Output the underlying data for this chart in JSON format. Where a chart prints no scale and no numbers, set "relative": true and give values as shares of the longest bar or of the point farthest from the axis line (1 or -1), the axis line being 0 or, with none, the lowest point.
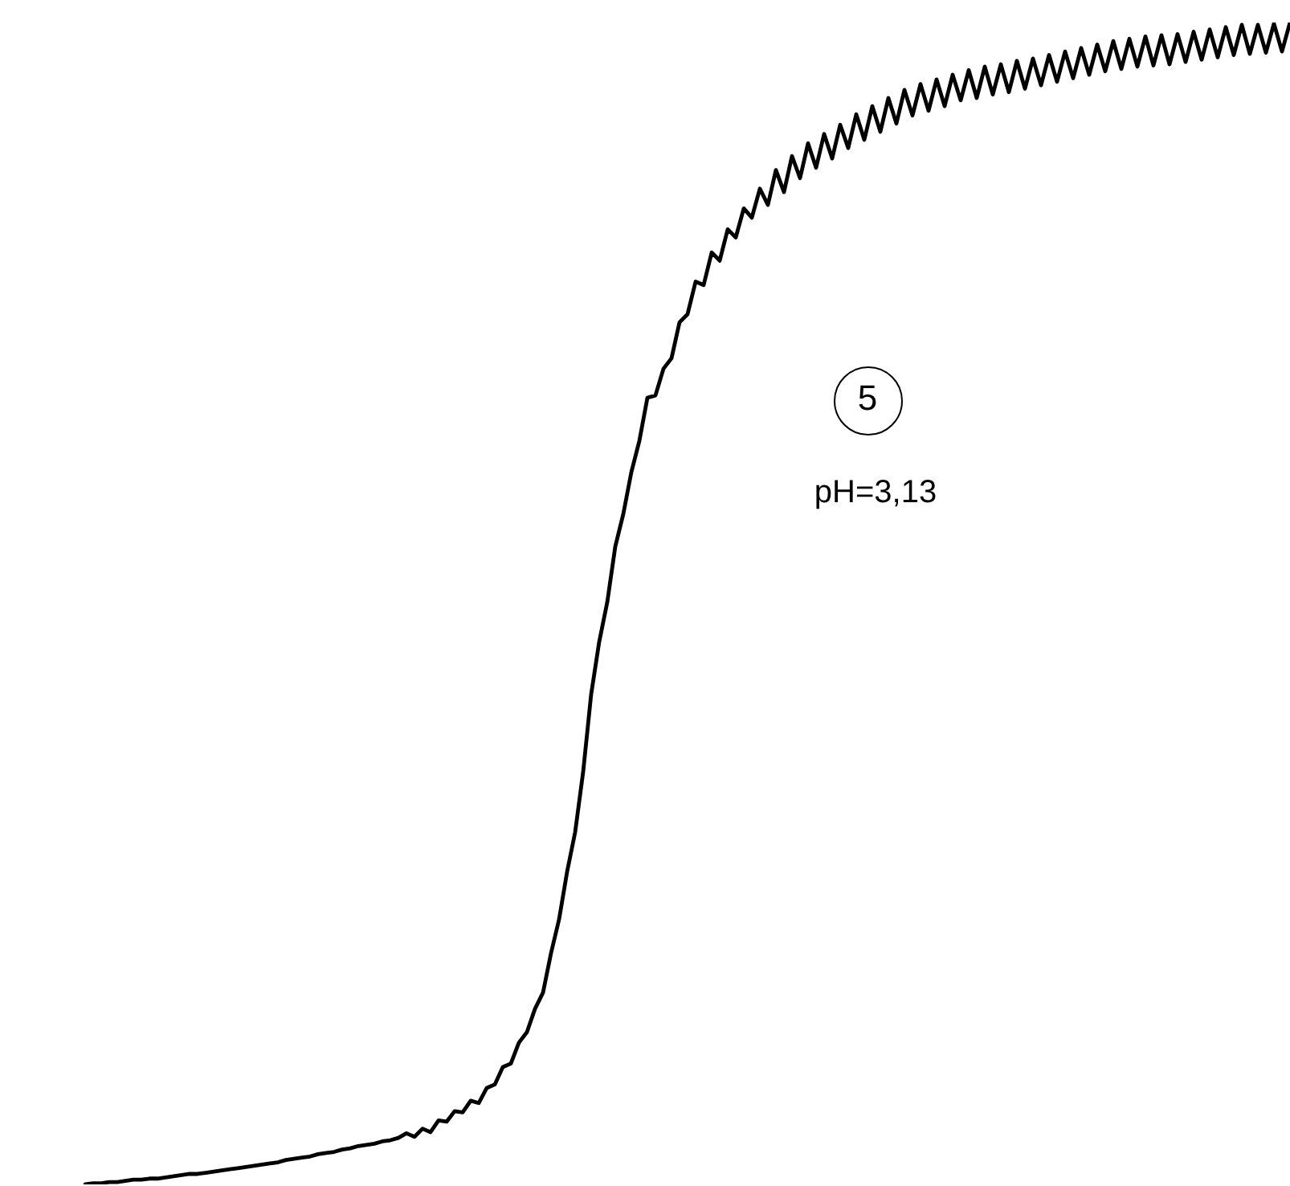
{
  "chart_data": {
    "type": "line",
    "relative": true,
    "color": "#000000",
    "categories": [
      null,
      null,
      null,
      null,
      null,
      null,
      null,
      null,
      null,
      null,
      null,
      null,
      null,
      null,
      null,
      null,
      null,
      null,
      null,
      null,
      null,
      null,
      null,
      null,
      null,
      null,
      null,
      null,
      null,
      null,
      null,
      null,
      null,
      null,
      null,
      null,
      null,
      null,
      null,
      null,
      null,
      null,
      null,
      null,
      null,
      null,
      null,
      null,
      null,
      null,
      null,
      null,
      null,
      null,
      null,
      null,
      null,
      null,
      null,
      null,
      null,
      null,
      null,
      null,
      null,
      null,
      null,
      null,
      null,
      null,
      null,
      null,
      null,
      null,
      null,
      null,
      null,
      null,
      null,
      null,
      null,
      null,
      null,
      null,
      null,
      null,
      null,
      null,
      null,
      null,
      null,
      null,
      null,
      null,
      null,
      null,
      null,
      null,
      null,
      null,
      null,
      null,
      null,
      null,
      null,
      null,
      null,
      null,
      null,
      null,
      null,
      null,
      null,
      null,
      null,
      null,
      null,
      null,
      null,
      null,
      null,
      null,
      null,
      null,
      null,
      null,
      null,
      null,
      null,
      null,
      null,
      null,
      null,
      null,
      null,
      null,
      null,
      null,
      null,
      null,
      null,
      null,
      null,
      null,
      null,
      null,
      null,
      null,
      null,
      null,
      null
    ],
    "values": [
      0,
      0.001,
      0.001,
      0.002,
      0.002,
      0.003,
      0.004,
      0.004,
      0.005,
      0.005,
      0.006,
      0.007,
      0.008,
      0.009,
      0.009,
      0.01,
      0.011,
      0.012,
      0.013,
      0.014,
      0.015,
      0.016,
      0.017,
      0.018,
      0.019,
      0.021,
      0.022,
      0.023,
      0.024,
      0.026,
      0.027,
      0.028,
      0.03,
      0.031,
      0.033,
      0.034,
      0.035,
      0.037,
      0.038,
      0.04,
      0.044,
      0.041,
      0.048,
      0.045,
      0.055,
      0.054,
      0.063,
      0.062,
      0.072,
      0.07,
      0.083,
      0.086,
      0.101,
      0.104,
      0.122,
      0.131,
      0.151,
      0.165,
      0.199,
      0.228,
      0.269,
      0.303,
      0.355,
      0.422,
      0.467,
      0.501,
      0.549,
      0.577,
      0.613,
      0.64,
      0.677,
      0.679,
      0.702,
      0.711,
      0.742,
      0.749,
      0.777,
      0.774,
      0.802,
      0.795,
      0.822,
      0.815,
      0.84,
      0.832,
      0.857,
      0.843,
      0.873,
      0.854,
      0.885,
      0.866,
      0.896,
      0.875,
      0.904,
      0.883,
      0.912,
      0.892,
      0.921,
      0.899,
      0.928,
      0.906,
      0.935,
      0.913,
      0.942,
      0.92,
      0.947,
      0.924,
      0.951,
      0.928,
      0.955,
      0.933,
      0.959,
      0.935,
      0.962,
      0.938,
      0.964,
      0.94,
      0.967,
      0.943,
      0.969,
      0.946,
      0.972,
      0.949,
      0.975,
      0.952,
      0.978,
      0.955,
      0.981,
      0.958,
      0.984,
      0.96,
      0.986,
      0.962,
      0.988,
      0.963,
      0.989,
      0.964,
      0.99,
      0.966,
      0.992,
      0.968,
      0.994,
      0.97,
      0.996,
      0.972,
      0.998,
      0.973,
      0.998,
      0.974,
      0.999,
      0.975,
      1
    ],
    "annotations": [
      "5",
      "pH=3,13"
    ]
  }
}
